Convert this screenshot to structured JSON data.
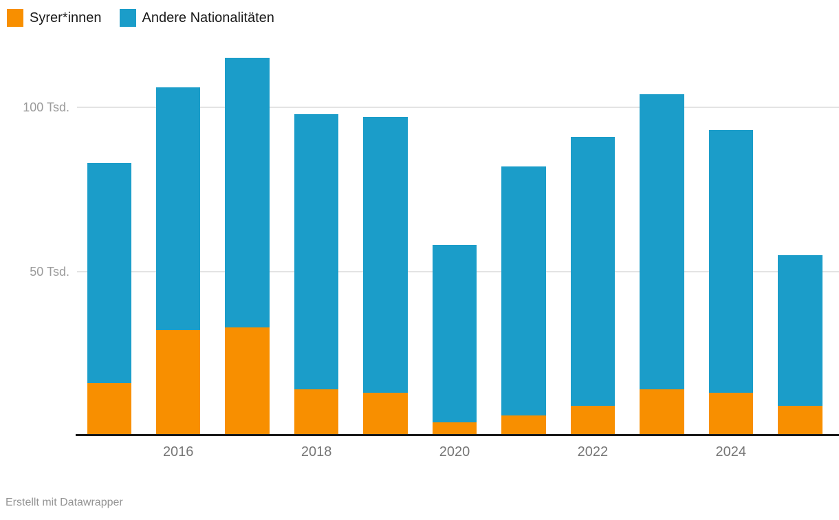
{
  "legend": {
    "items": [
      {
        "label": "Syrer*innen",
        "color": "#F88F00"
      },
      {
        "label": "Andere Nationalitäten",
        "color": "#1B9DC9"
      }
    ]
  },
  "footer": {
    "text": "Erstellt mit Datawrapper"
  },
  "chart_data": {
    "type": "bar",
    "stacked": true,
    "title": "",
    "xlabel": "",
    "ylabel": "",
    "unit": "Tsd.",
    "categories": [
      "2015",
      "2016",
      "2017",
      "2018",
      "2019",
      "2020",
      "2021",
      "2022",
      "2023",
      "2024",
      "2025"
    ],
    "series": [
      {
        "name": "Syrer*innen",
        "color": "#F88F00",
        "values": [
          16,
          32,
          33,
          14,
          13,
          4,
          6,
          9,
          14,
          13,
          9
        ]
      },
      {
        "name": "Andere Nationalitäten",
        "color": "#1B9DC9",
        "values": [
          67,
          74,
          82,
          84,
          84,
          54,
          76,
          82,
          90,
          80,
          46
        ]
      }
    ],
    "totals": [
      83,
      106,
      115,
      98,
      97,
      58,
      82,
      91,
      104,
      93,
      55
    ],
    "ylim": [
      0,
      120
    ],
    "grid": true,
    "y_ticks": [
      {
        "value": 50,
        "label": "50 Tsd."
      },
      {
        "value": 100,
        "label": "100 Tsd."
      }
    ],
    "x_tick_labels": [
      "2016",
      "2018",
      "2020",
      "2022",
      "2024"
    ],
    "x_tick_category_indexes": [
      1,
      3,
      5,
      7,
      9
    ],
    "legend_position": "top-left"
  }
}
